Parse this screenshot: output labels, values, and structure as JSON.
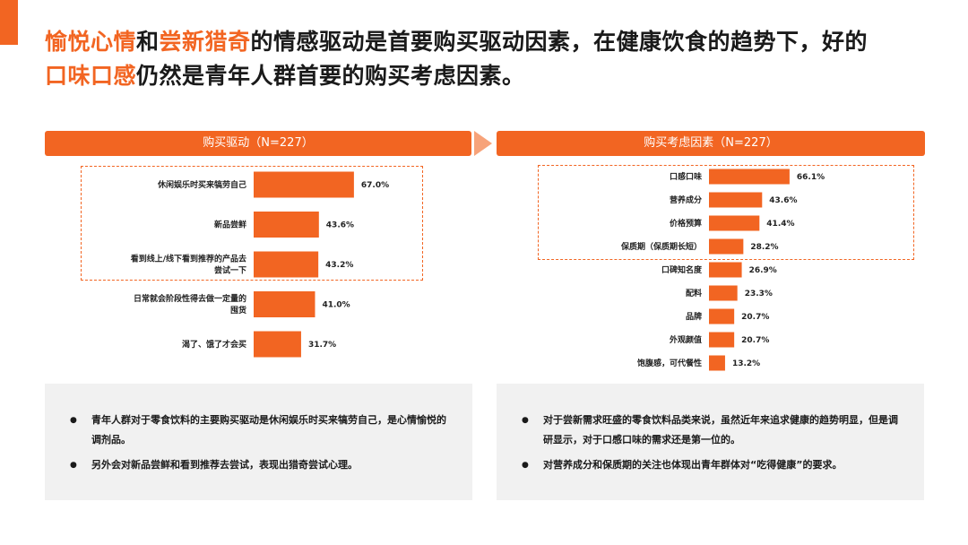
{
  "headline": {
    "hl1": "愉悦心情",
    "t1": "和",
    "hl2": "尝新猎奇",
    "t2": "的情感驱动是首要购买驱动因素，在健康饮食的趋势下，好的",
    "hl3": "口味口感",
    "t3": "仍然是青年人群首要的购买考虑因素。"
  },
  "colors": {
    "accent": "#f26522",
    "arrow": "#f7a37a",
    "note_bg": "#f1f1f1"
  },
  "chart_data": [
    {
      "type": "bar",
      "orientation": "horizontal",
      "title": "购买驱动（N=227）",
      "categories": [
        [
          "休闲娱乐时买来犒劳自己"
        ],
        [
          "新品尝鲜"
        ],
        [
          "看到线上/线下看到推荐的产品去",
          "尝试一下"
        ],
        [
          "日常就会阶段性得去做一定量的",
          "囤货"
        ],
        [
          "渴了、饿了才会买"
        ]
      ],
      "values": [
        67.0,
        43.6,
        43.2,
        41.0,
        31.7
      ],
      "labels": [
        "67.0%",
        "43.6%",
        "43.2%",
        "41.0%",
        "31.7%"
      ],
      "xlim": [
        0,
        100
      ]
    },
    {
      "type": "bar",
      "orientation": "horizontal",
      "title": "购买考虑因素（N=227）",
      "categories": [
        [
          "口感口味"
        ],
        [
          "营养成分"
        ],
        [
          "价格预算"
        ],
        [
          "保质期（保质期长短）"
        ],
        [
          "口碑知名度"
        ],
        [
          "配料"
        ],
        [
          "品牌"
        ],
        [
          "外观颜值"
        ],
        [
          "饱腹感，可代餐性"
        ]
      ],
      "values": [
        66.1,
        43.6,
        41.4,
        28.2,
        26.9,
        23.3,
        20.7,
        20.7,
        13.2
      ],
      "labels": [
        "66.1%",
        "43.6%",
        "41.4%",
        "28.2%",
        "26.9%",
        "23.3%",
        "20.7%",
        "20.7%",
        "13.2%"
      ],
      "xlim": [
        0,
        100
      ]
    }
  ],
  "notes_left": [
    "青年人群对于零食饮料的主要购买驱动是休闲娱乐时买来犒劳自己，是心情愉悦的调剂品。",
    "另外会对新品尝鲜和看到推荐去尝试，表现出猎奇尝试心理。"
  ],
  "notes_right": [
    "对于尝新需求旺盛的零食饮料品类来说，虽然近年来追求健康的趋势明显，但是调研显示，对于口感口味的需求还是第一位的。",
    "对营养成分和保质期的关注也体现出青年群体对“吃得健康”的要求。"
  ]
}
